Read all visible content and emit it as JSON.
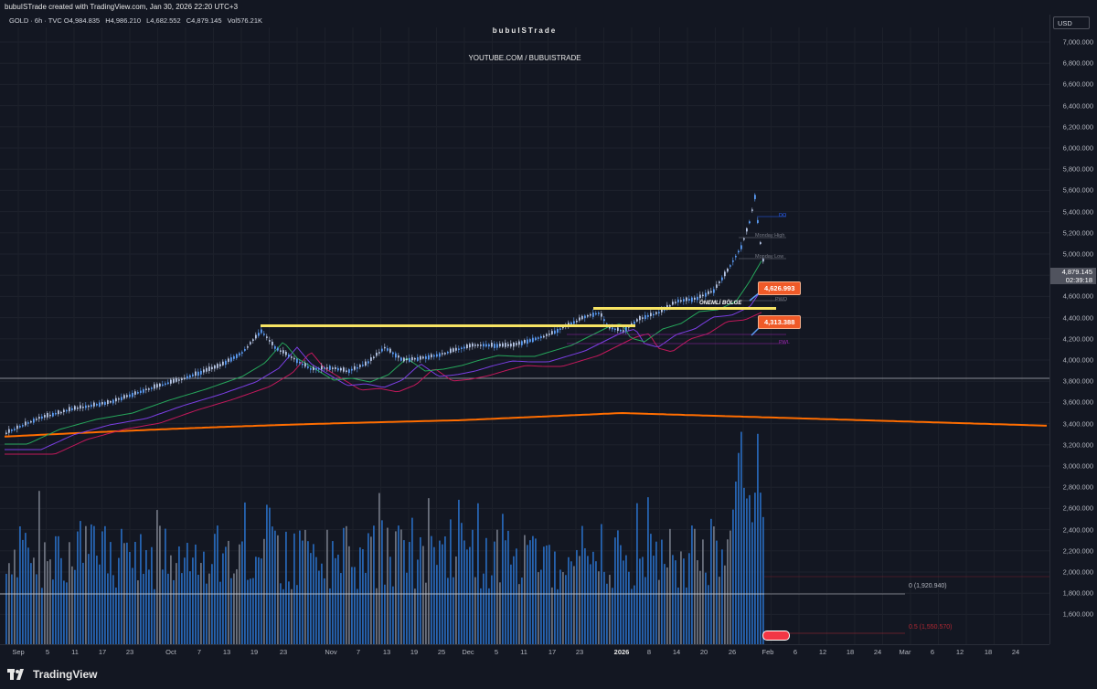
{
  "header": {
    "credit": "bubuISTrade created with TradingView.com, Jan 30, 2026 22:20 UTC+3"
  },
  "symbol": {
    "name": "GOLD · 6h · TVC",
    "open_label": "O",
    "open": "4,984.835",
    "high_label": "H",
    "high": "4,986.210",
    "low_label": "L",
    "low": "4,682.552",
    "close_label": "C",
    "close": "4,879.145",
    "vol_label": "Vol",
    "vol": "576.21K"
  },
  "watermark": {
    "brand": "bubuISTrade",
    "channel": "YOUTUBE.COM / BUBUISTRADE"
  },
  "price_axis": {
    "currency": "USD",
    "labels": [
      "7,000.000",
      "6,800.000",
      "6,600.000",
      "6,400.000",
      "6,200.000",
      "6,000.000",
      "5,800.000",
      "5,600.000",
      "5,400.000",
      "5,200.000",
      "5,000.000",
      "4,800.000",
      "4,600.000",
      "4,400.000",
      "4,200.000",
      "4,000.000",
      "3,800.000",
      "3,600.000",
      "3,400.000",
      "3,200.000",
      "3,000.000",
      "2,800.000",
      "2,600.000",
      "2,400.000",
      "2,200.000",
      "2,000.000",
      "1,800.000",
      "1,600.000"
    ],
    "last_price": "4,879.145",
    "countdown": "02:39:18"
  },
  "time_axis": {
    "labels": [
      "Sep",
      "5",
      "11",
      "17",
      "23",
      "Oct",
      "7",
      "13",
      "19",
      "23",
      "Nov",
      "7",
      "13",
      "19",
      "25",
      "Dec",
      "5",
      "11",
      "17",
      "23",
      "2026",
      "8",
      "14",
      "20",
      "26",
      "Feb",
      "6",
      "12",
      "18",
      "24",
      "Mar",
      "6",
      "12",
      "18",
      "24"
    ]
  },
  "annotations": {
    "tag_upper": "4,626.993",
    "tag_lower": "4,313.388",
    "zone_label": "ÖNEMLİ BÖLGE",
    "monday_high": "Monday High",
    "monday_low": "Monday Low",
    "do_label": "DO",
    "pwo_label": "PWO",
    "pwl_label": "PWL",
    "fib_0": "0 (1,920.940)",
    "fib_05": "0.5 (1,550.570)"
  },
  "colors": {
    "background": "#131722",
    "candle": "#2962ff",
    "volume": "#2a71c9",
    "ema_long": "#ff6d00",
    "zone": "#f7e463",
    "tag": "#f05a28"
  },
  "footer": {
    "brand": "TradingView"
  }
}
